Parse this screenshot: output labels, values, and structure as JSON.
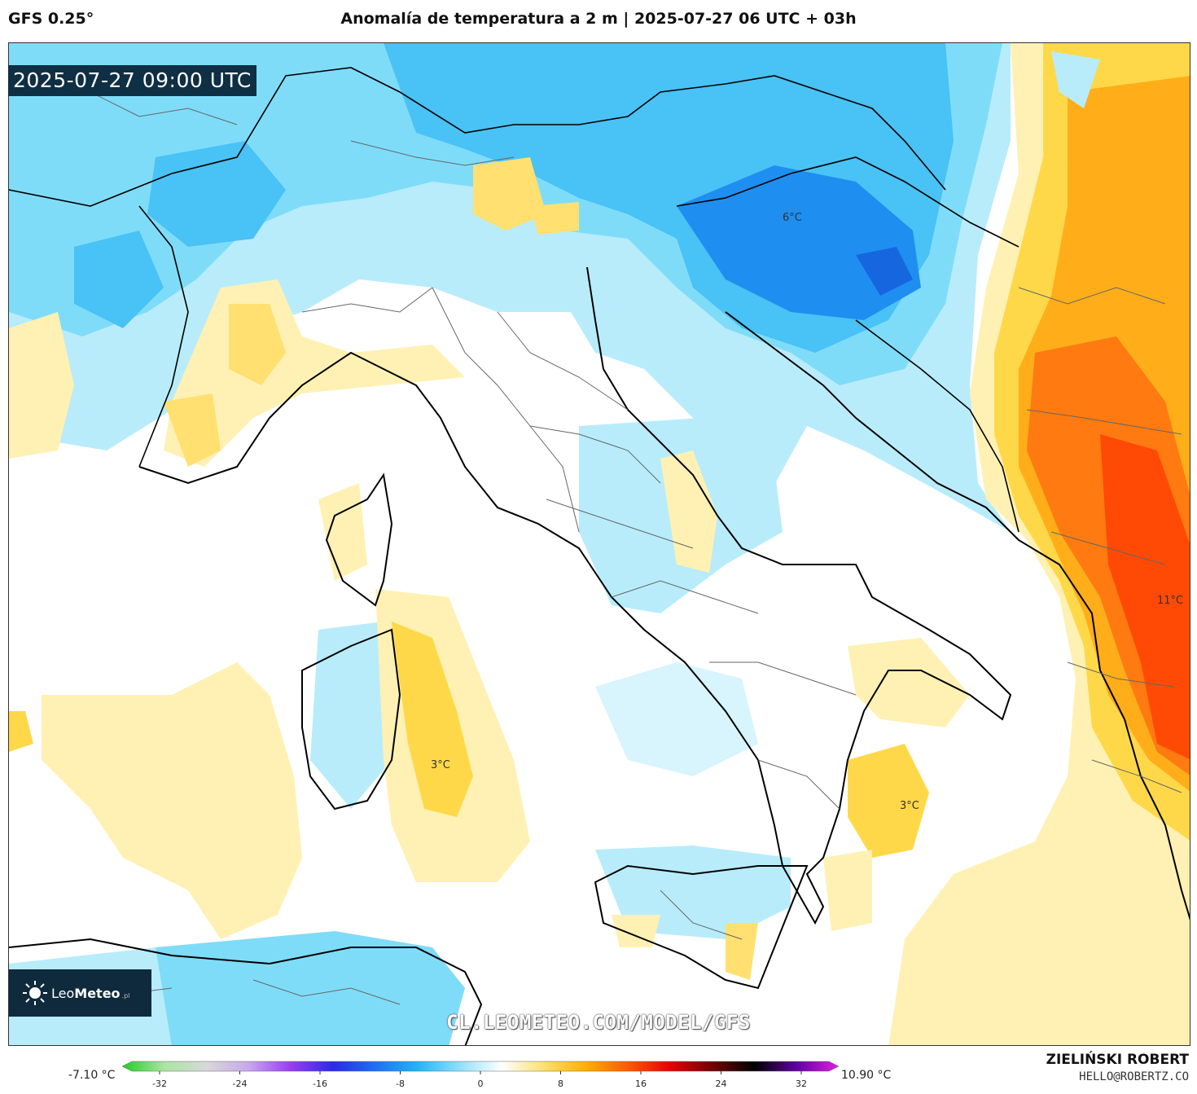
{
  "header": {
    "model": "GFS 0.25°",
    "title": "Anomalía de temperatura a 2 m | 2025-07-27 06 UTC + 03h"
  },
  "map": {
    "timestamp": "2025-07-27 09:00 UTC",
    "labels": [
      "3°C",
      "3°C",
      "6°C",
      "11°C"
    ],
    "watermark_url": "CL.LEOMETEO.COM/MODEL/GFS"
  },
  "logo": {
    "name_regular": "Leo",
    "name_bold": "Meteo",
    "suffix": ".pl",
    "icon": "sun-icon"
  },
  "legend": {
    "min_label": "-7.10 °C",
    "max_label": "10.90 °C",
    "ticks": [
      "-32",
      "-24",
      "-16",
      "-8",
      "0",
      "8",
      "16",
      "24",
      "32"
    ],
    "colors": [
      "#22cc22",
      "#a8e6a0",
      "#d8d8d8",
      "#c8a8ec",
      "#9a3cf0",
      "#2a2ae8",
      "#1e6ef5",
      "#22b4f5",
      "#8ee0ff",
      "#ffffff",
      "#ffe070",
      "#ffb000",
      "#ff5a00",
      "#e80000",
      "#700000",
      "#000000",
      "#6000a0",
      "#e020e0"
    ]
  },
  "credit": {
    "name": "ZIELIŃSKI ROBERT",
    "email": "HELLO@ROBERTZ.CO"
  }
}
